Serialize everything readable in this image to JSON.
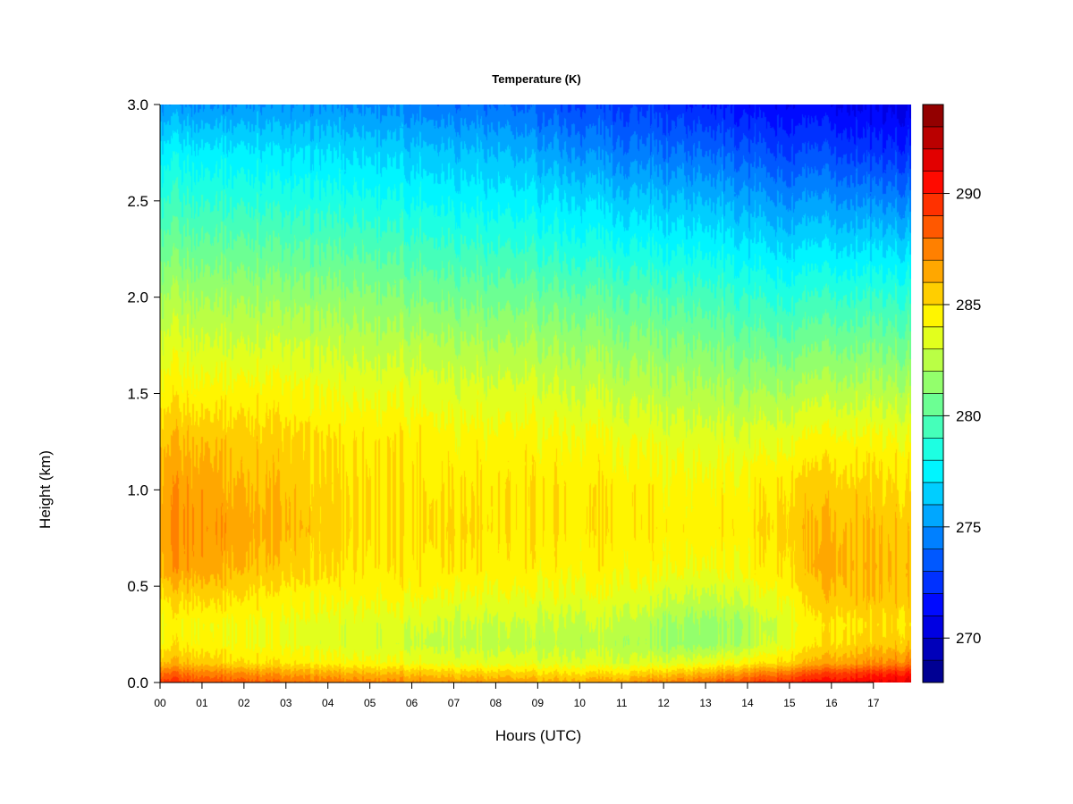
{
  "chart_data": {
    "type": "heatmap",
    "title": "Temperature (K)",
    "xlabel": "Hours (UTC)",
    "ylabel": "Height (km)",
    "x_ticks": [
      "00",
      "01",
      "02",
      "03",
      "04",
      "05",
      "06",
      "07",
      "08",
      "09",
      "10",
      "11",
      "12",
      "13",
      "14",
      "15",
      "16",
      "17"
    ],
    "x_range_hours": [
      0,
      17.9
    ],
    "y_ticks": [
      "0.0",
      "0.5",
      "1.0",
      "1.5",
      "2.0",
      "2.5",
      "3.0"
    ],
    "y_range_km": [
      0,
      3.0
    ],
    "colorbar": {
      "range": [
        268,
        294
      ],
      "step": 1,
      "ticks": [
        "270",
        "275",
        "280",
        "285",
        "290"
      ],
      "tick_values": [
        270,
        275,
        280,
        285,
        290
      ],
      "palette": "jet"
    },
    "heights_km": [
      0.0,
      0.05,
      0.1,
      0.2,
      0.3,
      0.45,
      0.6,
      0.8,
      1.0,
      1.25,
      1.5,
      1.75,
      2.0,
      2.25,
      2.5,
      2.75,
      3.0
    ],
    "hours": [
      0,
      1,
      2,
      3,
      4,
      5,
      6,
      7,
      8,
      9,
      10,
      11,
      12,
      13,
      14,
      15,
      16,
      17,
      17.9
    ],
    "temperature_k": [
      [
        289.5,
        288.0,
        286.0,
        284.5,
        284.0,
        285.0,
        286.5,
        286.8,
        286.5,
        285.8,
        284.5,
        283.3,
        282.0,
        280.5,
        279.0,
        277.5,
        275.0
      ],
      [
        289.0,
        287.5,
        285.8,
        284.5,
        284.3,
        285.5,
        286.8,
        287.0,
        286.8,
        286.0,
        284.5,
        283.3,
        282.0,
        280.5,
        279.0,
        277.5,
        275.0
      ],
      [
        288.5,
        287.0,
        285.0,
        284.0,
        284.0,
        285.0,
        286.0,
        286.5,
        286.0,
        285.5,
        284.5,
        283.0,
        281.8,
        280.3,
        278.8,
        277.3,
        275.0
      ],
      [
        288.0,
        286.5,
        284.8,
        283.8,
        283.8,
        284.5,
        285.5,
        286.0,
        285.8,
        285.3,
        284.3,
        283.0,
        281.5,
        280.0,
        278.5,
        277.0,
        275.0
      ],
      [
        287.8,
        286.3,
        284.5,
        283.5,
        283.5,
        284.3,
        285.2,
        285.5,
        285.3,
        285.0,
        284.0,
        282.8,
        281.5,
        280.0,
        278.5,
        277.0,
        275.0
      ],
      [
        287.5,
        286.0,
        284.3,
        283.3,
        283.5,
        284.3,
        284.8,
        285.0,
        285.0,
        284.8,
        283.8,
        282.5,
        281.3,
        279.8,
        278.3,
        276.8,
        274.8
      ],
      [
        287.2,
        285.8,
        284.0,
        283.0,
        283.3,
        284.3,
        284.8,
        285.0,
        285.0,
        284.8,
        283.8,
        282.5,
        281.0,
        279.5,
        278.0,
        276.5,
        274.5
      ],
      [
        287.0,
        285.5,
        283.8,
        282.8,
        283.0,
        284.0,
        285.0,
        285.3,
        285.0,
        284.5,
        283.5,
        282.3,
        280.8,
        279.3,
        277.8,
        276.3,
        274.3
      ],
      [
        286.8,
        285.3,
        283.5,
        282.5,
        282.8,
        283.8,
        284.5,
        284.8,
        284.8,
        284.3,
        283.3,
        282.0,
        280.5,
        279.0,
        277.5,
        276.0,
        274.0
      ],
      [
        286.5,
        285.0,
        283.5,
        282.5,
        282.8,
        283.8,
        284.5,
        284.8,
        284.8,
        284.3,
        283.3,
        282.0,
        280.5,
        278.8,
        277.3,
        275.5,
        273.5
      ],
      [
        286.5,
        285.0,
        283.5,
        282.5,
        282.8,
        283.8,
        284.5,
        284.8,
        284.8,
        284.3,
        283.0,
        281.8,
        280.3,
        278.5,
        277.0,
        275.0,
        273.0
      ],
      [
        286.8,
        285.0,
        283.3,
        282.5,
        282.8,
        283.8,
        284.5,
        284.8,
        284.8,
        284.0,
        282.8,
        281.5,
        280.0,
        278.3,
        276.5,
        274.5,
        272.8
      ],
      [
        287.5,
        285.5,
        283.5,
        281.8,
        282.0,
        283.3,
        284.3,
        284.8,
        284.5,
        283.8,
        282.5,
        281.3,
        279.8,
        278.0,
        276.3,
        274.3,
        272.5
      ],
      [
        288.0,
        286.0,
        283.8,
        281.5,
        281.5,
        282.8,
        284.0,
        284.5,
        284.3,
        283.5,
        282.3,
        281.0,
        279.5,
        277.8,
        276.0,
        274.0,
        272.0
      ],
      [
        289.0,
        287.0,
        284.5,
        282.3,
        282.0,
        283.3,
        284.3,
        284.8,
        284.5,
        283.5,
        282.0,
        280.5,
        279.0,
        277.3,
        275.5,
        273.5,
        271.5
      ],
      [
        290.0,
        288.0,
        285.5,
        284.0,
        283.8,
        284.5,
        285.3,
        285.5,
        285.3,
        284.0,
        282.3,
        280.5,
        278.8,
        277.0,
        275.0,
        273.0,
        271.3
      ],
      [
        290.5,
        289.0,
        286.5,
        285.0,
        284.8,
        285.8,
        286.3,
        286.0,
        285.5,
        284.3,
        282.5,
        280.8,
        279.0,
        277.0,
        275.0,
        273.0,
        271.0
      ],
      [
        291.0,
        289.5,
        287.0,
        285.5,
        285.0,
        285.8,
        286.0,
        285.8,
        285.3,
        284.3,
        282.5,
        280.8,
        279.0,
        277.0,
        274.8,
        272.5,
        270.8
      ],
      [
        291.5,
        290.0,
        287.5,
        285.5,
        285.0,
        285.5,
        285.8,
        285.5,
        285.0,
        284.0,
        282.3,
        280.5,
        278.8,
        276.8,
        274.5,
        272.3,
        270.5
      ]
    ]
  }
}
